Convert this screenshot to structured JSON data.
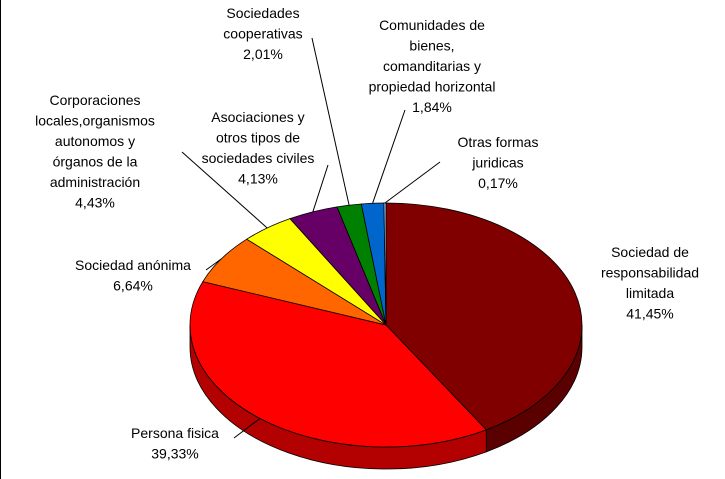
{
  "chart_data": {
    "type": "pie",
    "categories": [
      "Sociedad de\nresponsabilidad\nlimitada",
      "Persona fisica",
      "Sociedad anónima",
      "Corporaciones\nlocales,organismos\nautonomos y\nórganos de la\nadministración",
      "Asociaciones y\notros tipos de\nsociedades civiles",
      "Sociedades\ncooperativas",
      "Comunidades de\nbienes,\ncomanditarias y\npropiedad horizontal",
      "Otras formas\njuridicas"
    ],
    "values": [
      41.45,
      39.33,
      6.64,
      4.43,
      4.13,
      2.01,
      1.84,
      0.17
    ],
    "value_labels": [
      "41,45%",
      "39,33%",
      "6,64%",
      "4,43%",
      "4,13%",
      "2,01%",
      "1,84%",
      "0,17%"
    ],
    "colors": [
      "#800000",
      "#ff0000",
      "#ff6600",
      "#ffff00",
      "#660066",
      "#008000",
      "#0066cc",
      "#99ccff"
    ]
  }
}
